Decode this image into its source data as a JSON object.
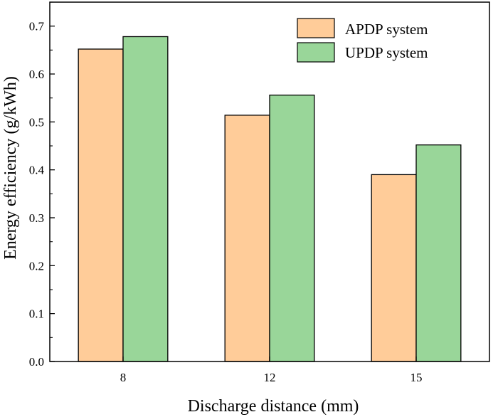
{
  "chart_data": {
    "type": "bar",
    "title": "",
    "xlabel": "Discharge distance (mm)",
    "ylabel": "Energy efficiency (g/kWh)",
    "categories": [
      "8",
      "12",
      "15"
    ],
    "ylim": [
      0.0,
      0.75
    ],
    "yticks": [
      0.0,
      0.1,
      0.2,
      0.3,
      0.4,
      0.5,
      0.6,
      0.7
    ],
    "ytick_labels": [
      "0.0",
      "0.1",
      "0.2",
      "0.3",
      "0.4",
      "0.5",
      "0.6",
      "0.7"
    ],
    "series": [
      {
        "name": "APDP system",
        "values": [
          0.652,
          0.514,
          0.39
        ],
        "color": "#FFCC99"
      },
      {
        "name": "UPDP system",
        "values": [
          0.678,
          0.556,
          0.452
        ],
        "color": "#99D699"
      }
    ],
    "legend_position": "top-right",
    "grid": false
  }
}
